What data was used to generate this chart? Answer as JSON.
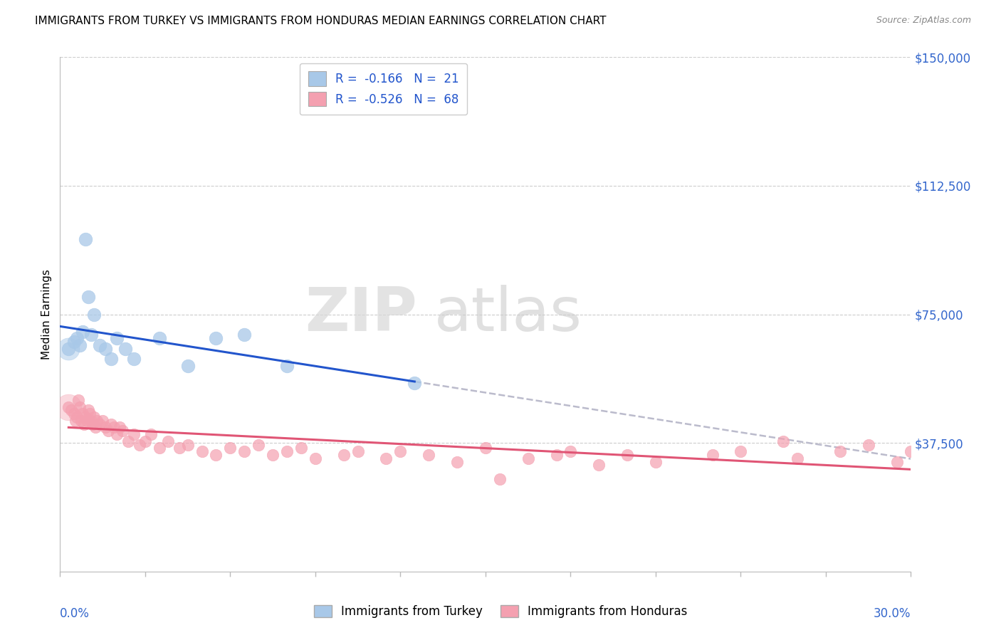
{
  "title": "IMMIGRANTS FROM TURKEY VS IMMIGRANTS FROM HONDURAS MEDIAN EARNINGS CORRELATION CHART",
  "source": "Source: ZipAtlas.com",
  "ylabel": "Median Earnings",
  "xmin": 0.0,
  "xmax": 30.0,
  "ymin": 0,
  "ymax": 150000,
  "yticks": [
    0,
    37500,
    75000,
    112500,
    150000
  ],
  "ytick_labels": [
    "",
    "$37,500",
    "$75,000",
    "$112,500",
    "$150,000"
  ],
  "R_turkey": -0.166,
  "N_turkey": 21,
  "R_honduras": -0.526,
  "N_honduras": 68,
  "color_turkey": "#A8C8E8",
  "color_turkey_line": "#2255CC",
  "color_honduras": "#F4A0B0",
  "color_honduras_line": "#E05575",
  "color_dashed": "#BBBBCC",
  "color_axis_labels": "#3366CC",
  "legend_text_color": "#2255CC",
  "watermark_zip": "ZIP",
  "watermark_atlas": "atlas",
  "turkey_scatter_x": [
    0.3,
    0.5,
    0.6,
    0.7,
    0.8,
    0.9,
    1.0,
    1.1,
    1.2,
    1.4,
    1.6,
    1.8,
    2.0,
    2.3,
    2.6,
    3.5,
    4.5,
    5.5,
    6.5,
    8.0,
    12.5
  ],
  "turkey_scatter_y": [
    65000,
    67000,
    68000,
    66000,
    70000,
    97000,
    80000,
    69000,
    75000,
    66000,
    65000,
    62000,
    68000,
    65000,
    62000,
    68000,
    60000,
    68000,
    69000,
    60000,
    55000
  ],
  "turkey_large_x": [
    0.3
  ],
  "turkey_large_y": [
    65000
  ],
  "honduras_scatter_x": [
    0.3,
    0.4,
    0.5,
    0.55,
    0.6,
    0.65,
    0.7,
    0.75,
    0.8,
    0.85,
    0.9,
    0.95,
    1.0,
    1.05,
    1.1,
    1.15,
    1.2,
    1.25,
    1.3,
    1.4,
    1.5,
    1.6,
    1.7,
    1.8,
    1.9,
    2.0,
    2.1,
    2.2,
    2.4,
    2.6,
    2.8,
    3.0,
    3.2,
    3.5,
    3.8,
    4.2,
    4.5,
    5.0,
    5.5,
    6.0,
    6.5,
    7.0,
    7.5,
    8.0,
    8.5,
    9.0,
    10.0,
    10.5,
    11.5,
    12.0,
    13.0,
    14.0,
    15.0,
    15.5,
    16.5,
    17.5,
    18.0,
    19.0,
    20.0,
    21.0,
    23.0,
    24.0,
    25.5,
    26.0,
    27.5,
    28.5,
    29.5,
    30.0
  ],
  "honduras_scatter_y": [
    48000,
    47000,
    46000,
    44000,
    45000,
    50000,
    48000,
    44000,
    46000,
    43000,
    45000,
    44000,
    47000,
    46000,
    44000,
    43000,
    45000,
    42000,
    44000,
    43000,
    44000,
    42000,
    41000,
    43000,
    42000,
    40000,
    42000,
    41000,
    38000,
    40000,
    37000,
    38000,
    40000,
    36000,
    38000,
    36000,
    37000,
    35000,
    34000,
    36000,
    35000,
    37000,
    34000,
    35000,
    36000,
    33000,
    34000,
    35000,
    33000,
    35000,
    34000,
    32000,
    36000,
    27000,
    33000,
    34000,
    35000,
    31000,
    34000,
    32000,
    34000,
    35000,
    38000,
    33000,
    35000,
    37000,
    32000,
    35000
  ],
  "honduras_large_x": [
    0.3
  ],
  "honduras_large_y": [
    48000
  ],
  "xtick_vals": [
    0,
    3,
    6,
    9,
    12,
    15,
    18,
    21,
    24,
    27,
    30
  ]
}
